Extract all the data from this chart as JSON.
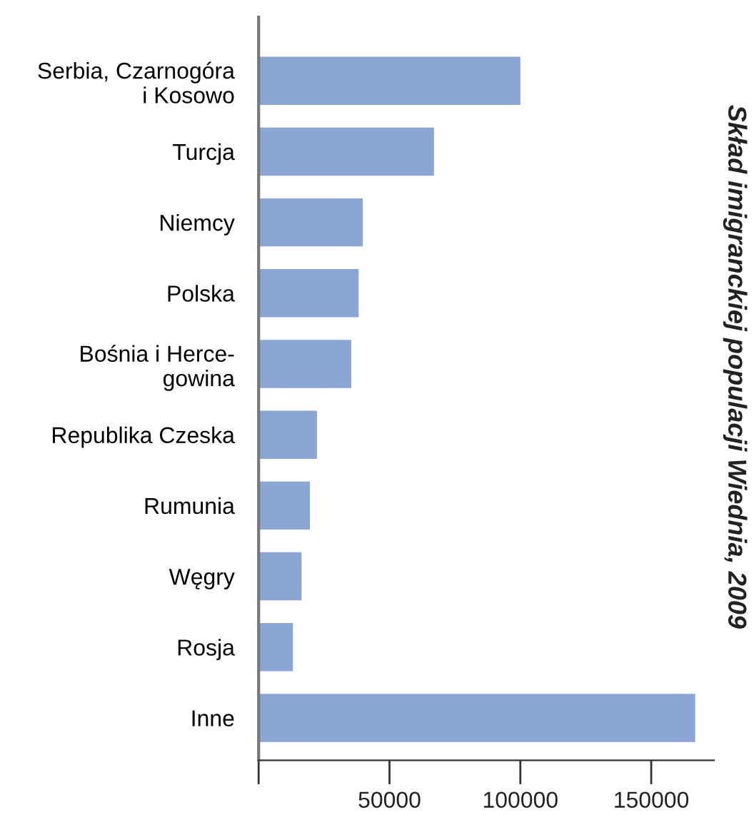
{
  "chart_data": {
    "type": "bar",
    "orientation": "horizontal",
    "title": "Skład imigranckiej populacji Wiednia, 2009",
    "categories": [
      "Serbia, Czarnogóra\ni Kosowo",
      "Turcja",
      "Niemcy",
      "Polska",
      "Bośnia i Herce-\ngowina",
      "Republika Czeska",
      "Rumunia",
      "Węgry",
      "Rosja",
      "Inne"
    ],
    "values": [
      100000,
      67000,
      39800,
      38200,
      35400,
      22300,
      19600,
      16400,
      13100,
      166800
    ],
    "color": "#8ba5d5",
    "xlim": [
      0,
      174000
    ],
    "xticks": [
      {
        "value": 0,
        "label": null
      },
      50000,
      100000,
      150000
    ],
    "grid": false,
    "legend": false
  }
}
